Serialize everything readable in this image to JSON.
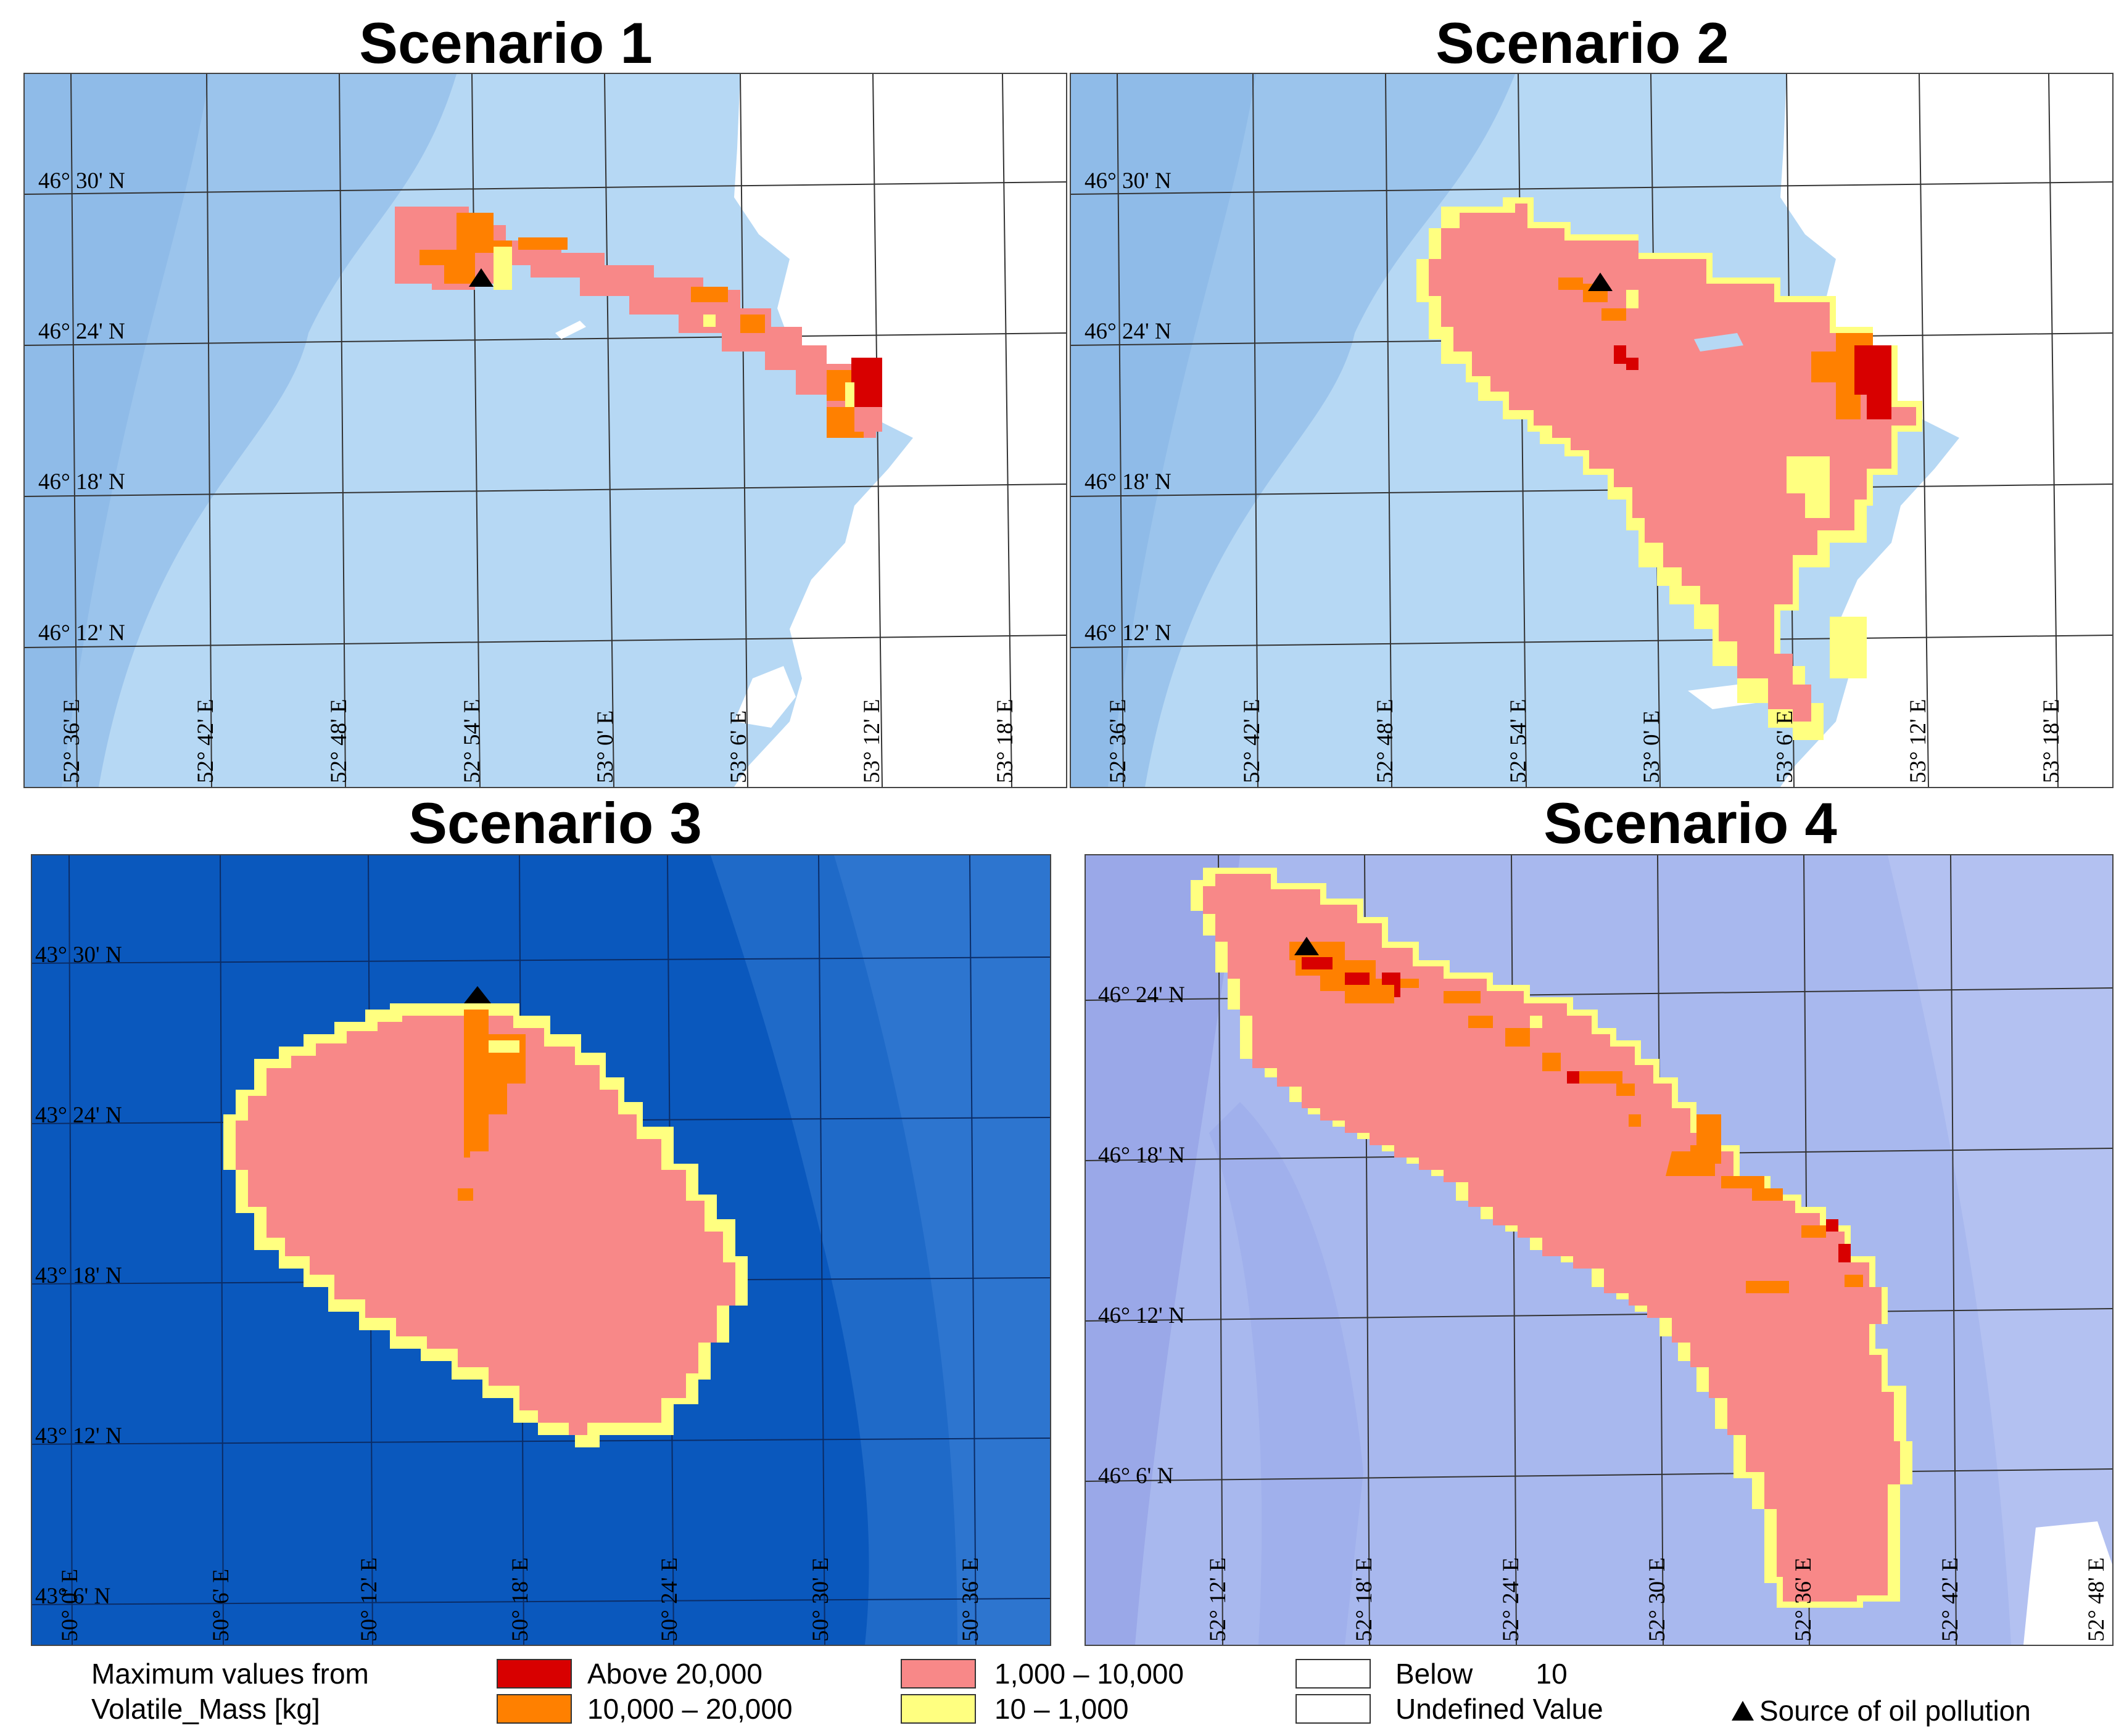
{
  "panels": [
    {
      "title": "Scenario 1",
      "lat_labels": [
        "46° 30' N",
        "46° 24' N",
        "46° 18' N",
        "46° 12' N"
      ],
      "lon_labels": [
        "52° 36' E",
        "52° 42' E",
        "52° 48' E",
        "52° 54' E",
        "53° 0' E",
        "53° 6' E",
        "53° 12' E",
        "53° 18' E"
      ],
      "background": "#a9cfef"
    },
    {
      "title": "Scenario 2",
      "lat_labels": [
        "46° 30' N",
        "46° 24' N",
        "46° 18' N",
        "46° 12' N"
      ],
      "lon_labels": [
        "52° 36' E",
        "52° 42' E",
        "52° 48' E",
        "52° 54' E",
        "53° 0' E",
        "53° 6' E",
        "53° 12' E",
        "53° 18' E"
      ],
      "background": "#a9cfef"
    },
    {
      "title": "Scenario 3",
      "lat_labels": [
        "43° 30' N",
        "43° 24' N",
        "43° 18' N",
        "43° 12' N",
        "43° 6' N"
      ],
      "lon_labels": [
        "50° 0' E",
        "50° 6' E",
        "50° 12' E",
        "50° 18' E",
        "50° 24' E",
        "50° 30' E",
        "50° 36' E"
      ],
      "background": "#0d5bbf"
    },
    {
      "title": "Scenario 4",
      "lat_labels": [
        "46° 24' N",
        "46° 18' N",
        "46° 12' N",
        "46° 6' N"
      ],
      "lon_labels": [
        "52° 12' E",
        "52° 18' E",
        "52° 24' E",
        "52° 30' E",
        "52° 36' E",
        "52° 42' E",
        "52° 48' E"
      ],
      "background": "#a7b6ef"
    }
  ],
  "legend": {
    "heading_line1": "Maximum values from",
    "heading_line2": "Volatile_Mass [kg]",
    "classes": [
      {
        "label": "Above 20,000",
        "color": "#d80000"
      },
      {
        "label": "10,000 – 20,000",
        "color": "#ff8000"
      },
      {
        "label": "1,000 – 10,000",
        "color": "#f88888"
      },
      {
        "label": "10 – 1,000",
        "color": "#ffff80"
      },
      {
        "label": "Below        10",
        "color": "#ffffff"
      },
      {
        "label": "Undefined Value",
        "color": "#ffffff"
      }
    ],
    "source_label": "Source of oil pollution",
    "source_icon": "black-triangle"
  }
}
